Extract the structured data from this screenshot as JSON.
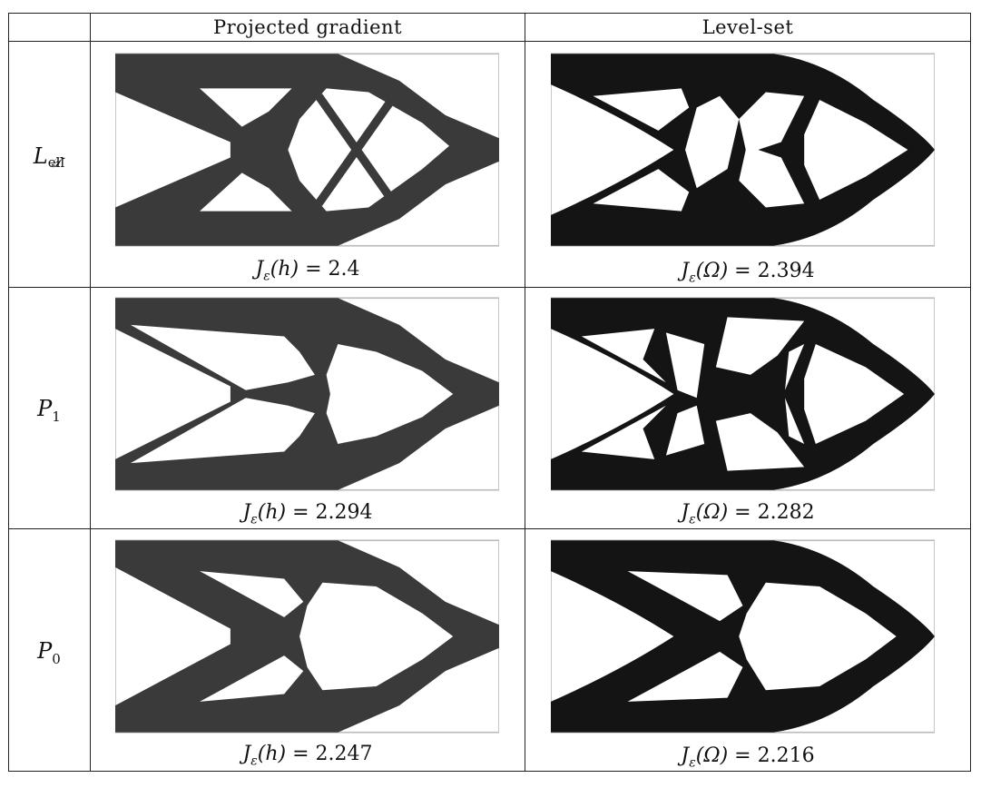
{
  "table": {
    "headers": [
      "",
      "Projected gradient",
      "Level-set"
    ],
    "rows": [
      {
        "label_base": "L",
        "label_sup": "ell",
        "label_sub": "𝒯",
        "pg_caption": {
          "func": "J",
          "sub": "ε",
          "arg": "(h)",
          "value": " = 2.4"
        },
        "ls_caption": {
          "func": "J",
          "sub": "ε",
          "arg": "(Ω)",
          "value": " = 2.394"
        }
      },
      {
        "label_base": "P",
        "label_sub": "1",
        "pg_caption": {
          "func": "J",
          "sub": "ε",
          "arg": "(h)",
          "value": " = 2.294"
        },
        "ls_caption": {
          "func": "J",
          "sub": "ε",
          "arg": "(Ω)",
          "value": " = 2.282"
        }
      },
      {
        "label_base": "P",
        "label_sub": "0",
        "pg_caption": {
          "func": "J",
          "sub": "ε",
          "arg": "(h)",
          "value": " = 2.247"
        },
        "ls_caption": {
          "func": "J",
          "sub": "ε",
          "arg": "(Ω)",
          "value": " = 2.216"
        }
      }
    ]
  },
  "colors": {
    "pg_material": "#3a3a3a",
    "ls_material": "#141414",
    "frame": "#bdbdbd"
  }
}
